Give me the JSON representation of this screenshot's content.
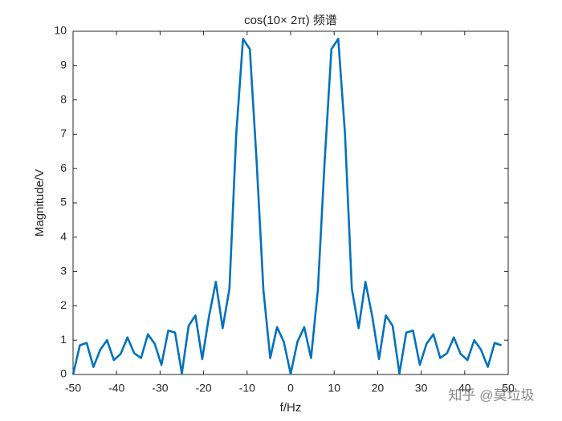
{
  "chart_data": {
    "type": "line",
    "title": "cos(10× 2π) 频谱",
    "x_label": "f/Hz",
    "y_label": "Magnitude/V",
    "watermark": "知乎 @莫垃圾",
    "x": [
      -50,
      -48.4375,
      -46.875,
      -45.3125,
      -43.75,
      -42.1875,
      -40.625,
      -39.0625,
      -37.5,
      -35.9375,
      -34.375,
      -32.8125,
      -31.25,
      -29.6875,
      -28.125,
      -26.5625,
      -25,
      -23.4375,
      -21.875,
      -20.3125,
      -18.75,
      -17.1875,
      -15.625,
      -14.0625,
      -12.5,
      -10.9375,
      -9.375,
      -7.8125,
      -6.25,
      -4.6875,
      -3.125,
      -1.5625,
      0,
      1.5625,
      3.125,
      4.6875,
      6.25,
      7.8125,
      9.375,
      10.9375,
      12.5,
      14.0625,
      15.625,
      17.1875,
      18.75,
      20.3125,
      21.875,
      23.4375,
      25,
      26.5625,
      28.125,
      29.6875,
      31.25,
      32.8125,
      34.375,
      35.9375,
      37.5,
      39.0625,
      40.625,
      42.1875,
      43.75,
      45.3125,
      46.875,
      48.4375
    ],
    "series": [
      {
        "color": "#0072BD",
        "values": [
          0,
          0.85,
          0.92,
          0.22,
          0.72,
          1.0,
          0.42,
          0.6,
          1.08,
          0.62,
          0.48,
          1.17,
          0.9,
          0.28,
          1.28,
          1.22,
          0.03,
          1.42,
          1.72,
          0.45,
          1.7,
          2.7,
          1.35,
          2.5,
          7.0,
          9.78,
          9.48,
          6.2,
          2.45,
          0.48,
          1.38,
          0.95,
          0.02,
          0.95,
          1.38,
          0.48,
          2.45,
          6.2,
          9.48,
          9.78,
          7.0,
          2.5,
          1.35,
          2.7,
          1.7,
          0.45,
          1.72,
          1.42,
          0.03,
          1.22,
          1.28,
          0.28,
          0.9,
          1.17,
          0.48,
          0.62,
          1.08,
          0.6,
          0.42,
          1.0,
          0.72,
          0.22,
          0.92,
          0.85
        ]
      }
    ],
    "xlim": [
      -50,
      50
    ],
    "xticks": [
      -50,
      -40,
      -30,
      -20,
      -10,
      0,
      10,
      20,
      30,
      40,
      50
    ],
    "ylim": [
      0,
      10
    ],
    "yticks": [
      0,
      1,
      2,
      3,
      4,
      5,
      6,
      7,
      8,
      9,
      10
    ]
  }
}
